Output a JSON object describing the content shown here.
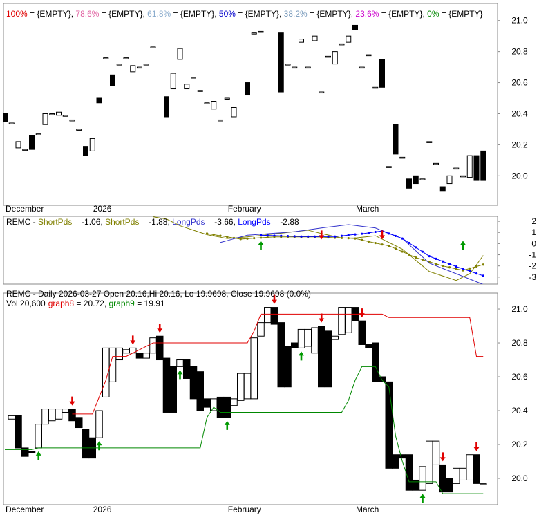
{
  "chart_data": [
    {
      "type": "candlestick",
      "categories": [
        "December",
        null,
        null,
        null,
        null,
        null,
        null,
        null,
        null,
        null,
        null,
        null,
        null,
        "2026",
        null,
        null,
        null,
        null,
        null,
        null,
        null,
        null,
        null,
        null,
        null,
        null,
        null,
        null,
        null,
        null,
        null,
        null,
        null,
        "February",
        null,
        null,
        null,
        null,
        null,
        null,
        null,
        null,
        null,
        null,
        null,
        null,
        null,
        null,
        null,
        null,
        null,
        null,
        "March",
        null,
        null,
        null,
        null,
        null,
        null,
        null,
        null,
        null,
        null,
        null,
        null,
        null,
        null,
        null,
        null,
        null,
        null,
        null
      ],
      "open": [
        20.4,
        20.34,
        20.18,
        20.17,
        20.26,
        20.27,
        20.33,
        20.4,
        20.39,
        20.39,
        20.36,
        20.3,
        20.19,
        20.16,
        20.5,
        20.76,
        20.65,
        20.72,
        20.76,
        20.67,
        20.7,
        20.72,
        20.83,
        null,
        20.51,
        20.56,
        20.75,
        20.56,
        20.63,
        20.55,
        20.47,
        20.43,
        20.36,
        20.5,
        20.38,
        null,
        20.6,
        20.92,
        20.93,
        null,
        null,
        20.92,
        20.72,
        20.7,
        20.86,
        20.7,
        20.87,
        20.54,
        20.77,
        20.72,
        20.85,
        20.86,
        20.97,
        20.7,
        20.78,
        20.57,
        20.75,
        20.06,
        20.33,
        20.12,
        19.98,
        20.0,
        19.98,
        20.22,
        20.08,
        19.93,
        19.95,
        20.05,
        20.0,
        19.99,
        20.13,
        20.16
      ],
      "close": [
        20.35,
        20.34,
        20.22,
        20.17,
        20.17,
        20.27,
        20.4,
        20.4,
        20.41,
        20.39,
        20.36,
        20.3,
        20.13,
        20.24,
        20.47,
        20.76,
        20.58,
        20.72,
        20.76,
        20.71,
        20.7,
        20.72,
        20.83,
        null,
        20.38,
        20.66,
        20.82,
        20.59,
        20.63,
        20.55,
        20.47,
        20.48,
        20.36,
        20.5,
        20.44,
        null,
        20.52,
        20.92,
        20.93,
        null,
        null,
        20.54,
        20.72,
        20.7,
        20.88,
        20.7,
        20.9,
        20.54,
        20.77,
        20.8,
        20.85,
        20.9,
        20.94,
        20.7,
        20.78,
        20.57,
        20.57,
        20.06,
        20.14,
        20.12,
        19.92,
        19.95,
        19.98,
        20.22,
        20.08,
        19.9,
        20.0,
        20.05,
        20.0,
        20.13,
        19.97,
        19.97
      ],
      "up_color": "#ffffff",
      "down_color": "#000000",
      "ylim": [
        19.81,
        21.11
      ],
      "yticks": [
        {
          "value": 20.0,
          "label": "20.0"
        },
        20.2,
        20.4,
        20.6,
        20.8,
        {
          "value": 21.0,
          "label": "21.0"
        }
      ],
      "legend_sep": " = ",
      "legend_join": ", ",
      "fib_levels": [
        {
          "name": "100%",
          "text": "{EMPTY}",
          "color": "#e00000"
        },
        {
          "name": "78.6%",
          "text": "{EMPTY}",
          "color": "#e060a0"
        },
        {
          "name": "61.8%",
          "text": "{EMPTY}",
          "color": "#88aacc"
        },
        {
          "name": "50%",
          "text": "{EMPTY}",
          "color": "#0000cc"
        },
        {
          "name": "38.2%",
          "text": "{EMPTY}",
          "color": "#7799bb"
        },
        {
          "name": "23.6%",
          "text": "{EMPTY}",
          "color": "#cc00cc"
        },
        {
          "name": "0%",
          "text": "{EMPTY}",
          "color": "#008800"
        }
      ]
    },
    {
      "type": "line",
      "prefix": "REMC - ",
      "legend_sep": " = ",
      "legend_join": ", ",
      "ylim": [
        -3.63,
        2.44
      ],
      "yticks": [
        2,
        1,
        0,
        -1,
        -2,
        -3
      ],
      "series": [
        {
          "name": "ShortPds",
          "color": "#808000",
          "markers": false,
          "values": [
            null,
            null,
            null,
            null,
            null,
            null,
            null,
            null,
            null,
            null,
            null,
            null,
            null,
            null,
            null,
            null,
            null,
            null,
            null,
            null,
            null,
            null,
            2.4,
            2.3,
            2.2,
            1.9,
            1.6,
            1.4,
            1.2,
            1.0,
            0.8,
            0.68,
            0.57,
            0.45,
            0.5,
            0.55,
            0.6,
            0.67,
            0.73,
            0.8,
            0.87,
            0.93,
            1.0,
            1.07,
            1.13,
            1.2,
            1.05,
            0.9,
            0.77,
            0.63,
            0.5,
            0.5,
            0.5,
            0.57,
            0.63,
            0.7,
            0.4,
            0.1,
            -0.2,
            -0.5,
            -1.0,
            -1.5,
            -2.0,
            -2.5,
            -2.7,
            -2.9,
            -3.1,
            -3.3,
            -3.0,
            -2.7,
            -1.9,
            -1.06
          ]
        },
        {
          "name": "ShortPds",
          "color": "#808000",
          "markers": true,
          "values": [
            null,
            null,
            null,
            null,
            null,
            null,
            null,
            null,
            null,
            null,
            null,
            null,
            null,
            null,
            null,
            null,
            null,
            null,
            null,
            null,
            null,
            null,
            null,
            null,
            null,
            null,
            null,
            null,
            null,
            null,
            0.9,
            0.8,
            0.7,
            0.6,
            0.5,
            0.4,
            0.44,
            0.48,
            0.52,
            0.56,
            0.6,
            0.6,
            0.6,
            0.6,
            0.6,
            0.6,
            0.6,
            0.58,
            0.55,
            0.52,
            0.5,
            0.48,
            0.45,
            0.32,
            0.18,
            0.05,
            -0.08,
            -0.2,
            -0.46,
            -0.72,
            -0.99,
            -1.25,
            -1.44,
            -1.63,
            -1.81,
            -2.0,
            -2.13,
            -2.27,
            -2.4,
            -2.23,
            -2.05,
            -1.88
          ]
        },
        {
          "name": "LongPds",
          "color": "#3333cc",
          "markers": false,
          "values": [
            null,
            null,
            null,
            null,
            null,
            null,
            null,
            null,
            null,
            null,
            null,
            null,
            null,
            null,
            null,
            null,
            null,
            null,
            null,
            null,
            null,
            null,
            null,
            null,
            null,
            null,
            null,
            null,
            null,
            null,
            null,
            null,
            0.1,
            0.26,
            0.43,
            0.59,
            0.75,
            0.79,
            0.84,
            0.88,
            0.93,
            0.97,
            1.02,
            1.06,
            1.15,
            1.23,
            1.32,
            1.4,
            1.48,
            1.55,
            1.63,
            1.7,
            1.63,
            1.55,
            1.48,
            1.4,
            1.16,
            0.93,
            0.69,
            0.45,
            -0.1,
            -0.65,
            -1.2,
            -1.75,
            -1.99,
            -2.23,
            -2.46,
            -2.7,
            -2.94,
            -3.18,
            -3.42,
            -3.66
          ]
        },
        {
          "name": "LongPds",
          "color": "#0000ff",
          "markers": true,
          "values": [
            null,
            null,
            null,
            null,
            null,
            null,
            null,
            null,
            null,
            null,
            null,
            null,
            null,
            null,
            null,
            null,
            null,
            null,
            null,
            null,
            null,
            null,
            null,
            null,
            null,
            null,
            null,
            null,
            null,
            null,
            null,
            null,
            null,
            null,
            null,
            null,
            null,
            null,
            0.75,
            0.73,
            0.71,
            0.69,
            0.67,
            0.65,
            0.63,
            0.63,
            0.63,
            0.63,
            0.63,
            0.63,
            0.69,
            0.76,
            0.82,
            0.88,
            0.96,
            1.05,
            1.13,
            0.9,
            0.68,
            0.45,
            0.06,
            -0.34,
            -0.73,
            -1.13,
            -1.36,
            -1.6,
            -1.83,
            -2.06,
            -2.27,
            -2.47,
            -2.68,
            -2.88
          ]
        }
      ],
      "up_arrows": [
        38,
        68
      ],
      "down_arrows": [
        47,
        56
      ],
      "up_arrow_color": "#009900",
      "down_arrow_color": "#e00000"
    },
    {
      "type": "candlestick",
      "title": "REMC - Daily 2026-03-27 Open 20.16,Hi 20.16, Lo 19.9698, Close 19.9698 (0.0%)",
      "volume": "Vol 20,600",
      "legend_sep": " = ",
      "legend_join": ", ",
      "categories": [
        "December",
        null,
        null,
        null,
        null,
        null,
        null,
        null,
        null,
        null,
        null,
        null,
        null,
        "2026",
        null,
        null,
        null,
        null,
        null,
        null,
        null,
        null,
        null,
        null,
        null,
        null,
        null,
        null,
        null,
        null,
        null,
        null,
        null,
        "February",
        null,
        null,
        null,
        null,
        null,
        null,
        null,
        null,
        null,
        null,
        null,
        null,
        null,
        null,
        null,
        null,
        null,
        null,
        "March",
        null,
        null,
        null,
        null,
        null,
        null,
        null,
        null,
        null,
        null,
        null,
        null,
        null,
        null,
        null,
        null,
        null,
        null,
        null
      ],
      "open": [
        null,
        20.35,
        20.37,
        20.18,
        20.16,
        20.18,
        20.32,
        20.34,
        20.35,
        20.39,
        20.41,
        20.36,
        20.29,
        20.24,
        20.24,
        20.48,
        20.57,
        20.7,
        20.74,
        20.74,
        20.74,
        20.71,
        20.74,
        20.84,
        20.71,
        20.66,
        20.66,
        20.7,
        20.66,
        20.63,
        20.47,
        20.4,
        20.48,
        20.48,
        20.43,
        20.46,
        20.47,
        20.47,
        20.84,
        20.92,
        21.01,
        20.92,
        20.78,
        20.8,
        20.77,
        20.78,
        20.74,
        20.9,
        20.87,
        20.82,
        20.85,
        20.86,
        21.01,
        20.93,
        20.79,
        20.8,
        20.6,
        20.57,
        20.14,
        20.14,
        20.14,
        19.99,
        19.93,
        19.97,
        20.08,
        20.08,
        20.0,
        19.97,
        19.99,
        19.99,
        20.14,
        19.97
      ],
      "close": [
        null,
        20.37,
        20.18,
        20.13,
        20.15,
        20.32,
        20.41,
        20.41,
        20.41,
        20.41,
        20.34,
        20.3,
        20.12,
        20.12,
        20.4,
        20.77,
        20.77,
        20.77,
        20.76,
        20.77,
        20.71,
        20.74,
        20.83,
        20.7,
        20.39,
        20.39,
        20.7,
        20.59,
        20.47,
        20.4,
        20.42,
        20.47,
        20.36,
        20.36,
        20.47,
        20.62,
        20.62,
        20.83,
        20.92,
        21.01,
        20.91,
        20.54,
        20.54,
        20.77,
        20.88,
        20.88,
        20.89,
        20.54,
        20.54,
        20.84,
        21.01,
        21.01,
        20.93,
        20.79,
        20.77,
        20.57,
        20.57,
        20.06,
        20.06,
        20.12,
        19.93,
        19.93,
        20.07,
        20.22,
        20.22,
        19.92,
        19.92,
        20.06,
        20.06,
        20.14,
        19.97,
        19.97
      ],
      "up_color": "#ffffff",
      "down_color": "#000000",
      "ylim": [
        19.845,
        21.094
      ],
      "yticks": [
        {
          "value": 20.0,
          "label": "20.0"
        },
        20.2,
        20.4,
        20.6,
        20.8,
        {
          "value": 21.0,
          "label": "21.0"
        }
      ],
      "series": [
        {
          "name": "graph8",
          "color": "#e00000",
          "markers": false,
          "values": [
            null,
            null,
            null,
            null,
            null,
            null,
            null,
            null,
            null,
            null,
            20.38,
            20.38,
            20.38,
            20.38,
            20.48,
            20.58,
            20.72,
            20.72,
            20.72,
            20.74,
            20.76,
            20.78,
            20.8,
            20.8,
            20.8,
            20.8,
            20.8,
            20.8,
            20.8,
            20.8,
            20.8,
            20.8,
            20.8,
            20.8,
            20.8,
            20.8,
            20.8,
            20.87,
            20.97,
            20.97,
            20.97,
            20.97,
            20.97,
            20.97,
            20.97,
            20.97,
            20.97,
            20.97,
            20.97,
            20.97,
            20.97,
            20.97,
            20.97,
            20.97,
            20.97,
            20.97,
            20.97,
            20.95,
            20.95,
            20.95,
            20.95,
            20.95,
            20.95,
            20.95,
            20.95,
            20.95,
            20.95,
            20.95,
            20.95,
            20.95,
            20.72,
            20.72
          ]
        },
        {
          "name": "graph9",
          "color": "#008800",
          "markers": false,
          "values": [
            20.17,
            20.17,
            20.17,
            20.17,
            20.17,
            20.18,
            20.18,
            20.18,
            20.18,
            20.18,
            20.18,
            20.18,
            20.18,
            20.18,
            20.18,
            20.18,
            20.18,
            20.18,
            20.18,
            20.18,
            20.18,
            20.18,
            20.18,
            20.18,
            20.18,
            20.18,
            20.18,
            20.18,
            20.18,
            20.18,
            20.36,
            20.42,
            20.39,
            20.39,
            20.39,
            20.39,
            20.39,
            20.39,
            20.39,
            20.39,
            20.39,
            20.39,
            20.39,
            20.39,
            20.39,
            20.39,
            20.39,
            20.39,
            20.39,
            20.39,
            20.39,
            20.46,
            20.58,
            20.66,
            20.66,
            20.66,
            20.58,
            20.54,
            20.25,
            20.1,
            19.98,
            19.98,
            19.98,
            19.98,
            19.98,
            19.91,
            19.91,
            19.91,
            19.91,
            19.91,
            19.91,
            19.91
          ]
        }
      ],
      "up_arrows": [
        5,
        14,
        26,
        33,
        44,
        62
      ],
      "down_arrows": [
        10,
        19,
        23,
        40,
        47,
        53,
        65,
        70
      ],
      "up_arrow_color": "#009900",
      "down_arrow_color": "#e00000"
    }
  ]
}
